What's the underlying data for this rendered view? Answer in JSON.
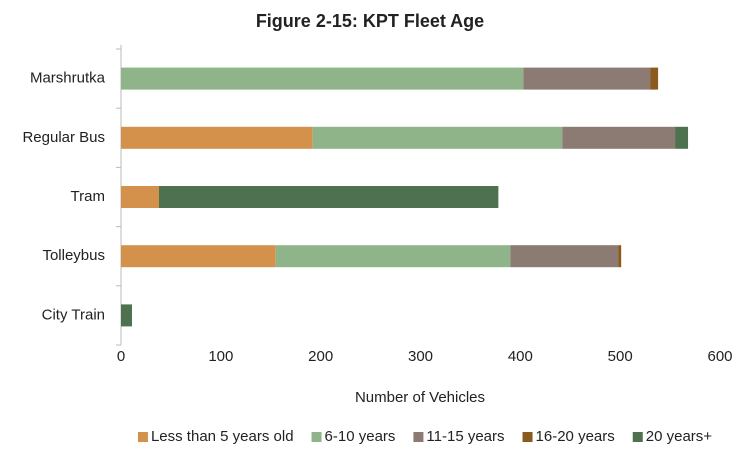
{
  "chart_data": {
    "type": "stacked_barh",
    "title": "Figure 2-15: KPT Fleet Age",
    "categories": [
      "Marshrutka",
      "Regular Bus",
      "Tram",
      "Tolleybus",
      "City Train"
    ],
    "series": [
      {
        "name": "Less than 5 years old",
        "color": "#d4914b",
        "values": [
          0,
          192,
          38,
          155,
          0
        ]
      },
      {
        "name": "6-10 years",
        "color": "#8fb48a",
        "values": [
          403,
          250,
          0,
          235,
          0
        ]
      },
      {
        "name": "11-15 years",
        "color": "#8c7b73",
        "values": [
          127,
          113,
          0,
          108,
          0
        ]
      },
      {
        "name": "16-20 years",
        "color": "#8b5a1e",
        "values": [
          8,
          0,
          0,
          3,
          0
        ]
      },
      {
        "name": "20 years+",
        "color": "#4e7150",
        "values": [
          0,
          13,
          340,
          0,
          11
        ]
      }
    ],
    "xlabel": "Number of Vehicles",
    "xlim": [
      0,
      600
    ],
    "xticks": [
      0,
      100,
      200,
      300,
      400,
      500,
      600
    ],
    "grid": false,
    "legend": "bottom"
  }
}
